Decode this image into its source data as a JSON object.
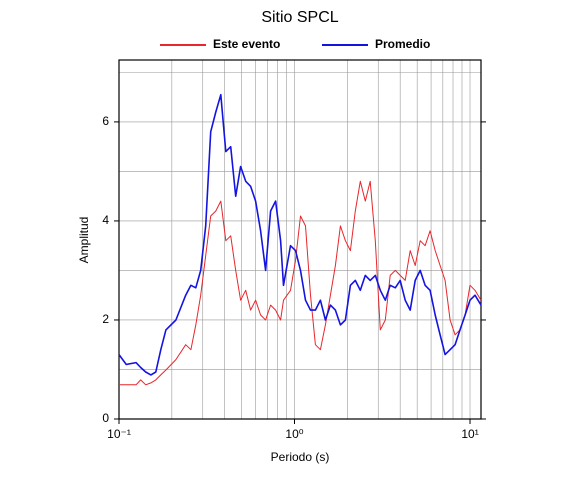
{
  "chart_data": {
    "type": "line",
    "title": "Sitio SPCL",
    "x_label": "Periodo (s)",
    "y_label": "Amplitud",
    "x_scale": "log",
    "grid": true,
    "legend": "top",
    "xlim": [
      0.1,
      11.55
    ],
    "ylim": [
      0,
      7.25
    ],
    "xticks": [
      {
        "value": 0.1,
        "label": "10⁻¹"
      },
      {
        "value": 1,
        "label": "10⁰"
      },
      {
        "value": 10,
        "label": "10¹"
      }
    ],
    "yticks": [
      0,
      2,
      4,
      6
    ],
    "yminorticks": [
      1,
      3,
      5,
      7
    ],
    "x": [
      0.1,
      0.11,
      0.125,
      0.133,
      0.142,
      0.152,
      0.162,
      0.173,
      0.185,
      0.211,
      0.24,
      0.257,
      0.274,
      0.292,
      0.312,
      0.333,
      0.356,
      0.38,
      0.406,
      0.433,
      0.462,
      0.493,
      0.527,
      0.562,
      0.6,
      0.641,
      0.684,
      0.731,
      0.78,
      0.833,
      0.866,
      0.949,
      1.013,
      1.082,
      1.155,
      1.233,
      1.316,
      1.405,
      1.5,
      1.602,
      1.71,
      1.826,
      1.949,
      2.081,
      2.22,
      2.37,
      2.53,
      2.7,
      2.885,
      3.08,
      3.29,
      3.51,
      3.75,
      4.0,
      4.27,
      4.56,
      4.87,
      5.2,
      5.55,
      5.92,
      6.33,
      6.75,
      7.21,
      7.7,
      8.22,
      8.77,
      9.37,
      10.0,
      10.67,
      11.55
    ],
    "series": [
      {
        "name": "Este evento",
        "color": "#e8262b",
        "width": 1,
        "values": [
          0.69,
          0.69,
          0.69,
          0.79,
          0.69,
          0.73,
          0.79,
          0.89,
          0.99,
          1.2,
          1.5,
          1.4,
          1.9,
          2.5,
          3.3,
          4.1,
          4.2,
          4.4,
          3.6,
          3.7,
          3.0,
          2.4,
          2.6,
          2.2,
          2.4,
          2.1,
          2.0,
          2.3,
          2.2,
          2.0,
          2.4,
          2.6,
          3.2,
          4.1,
          3.9,
          2.5,
          1.5,
          1.4,
          1.9,
          2.5,
          3.1,
          3.9,
          3.6,
          3.4,
          4.2,
          4.8,
          4.4,
          4.8,
          3.6,
          1.8,
          2.0,
          2.9,
          3.0,
          2.9,
          2.8,
          3.4,
          3.1,
          3.6,
          3.5,
          3.8,
          3.4,
          3.1,
          2.8,
          2.0,
          1.7,
          1.8,
          2.1,
          2.7,
          2.6,
          2.4
        ]
      },
      {
        "name": "Promedio",
        "color": "#1414e0",
        "width": 1.6,
        "values": [
          1.3,
          1.1,
          1.14,
          1.04,
          0.95,
          0.89,
          0.95,
          1.4,
          1.8,
          2.0,
          2.5,
          2.7,
          2.65,
          3.0,
          3.9,
          5.8,
          6.2,
          6.55,
          5.4,
          5.5,
          4.5,
          5.1,
          4.8,
          4.7,
          4.4,
          3.8,
          3.0,
          4.2,
          4.4,
          3.6,
          2.7,
          3.5,
          3.4,
          3.0,
          2.4,
          2.2,
          2.2,
          2.4,
          2.0,
          2.3,
          2.2,
          1.9,
          2.0,
          2.7,
          2.8,
          2.6,
          2.9,
          2.8,
          2.9,
          2.6,
          2.4,
          2.7,
          2.65,
          2.8,
          2.4,
          2.2,
          2.8,
          3.0,
          2.7,
          2.6,
          2.1,
          1.7,
          1.3,
          1.4,
          1.5,
          1.8,
          2.1,
          2.4,
          2.5,
          2.3
        ]
      }
    ]
  }
}
